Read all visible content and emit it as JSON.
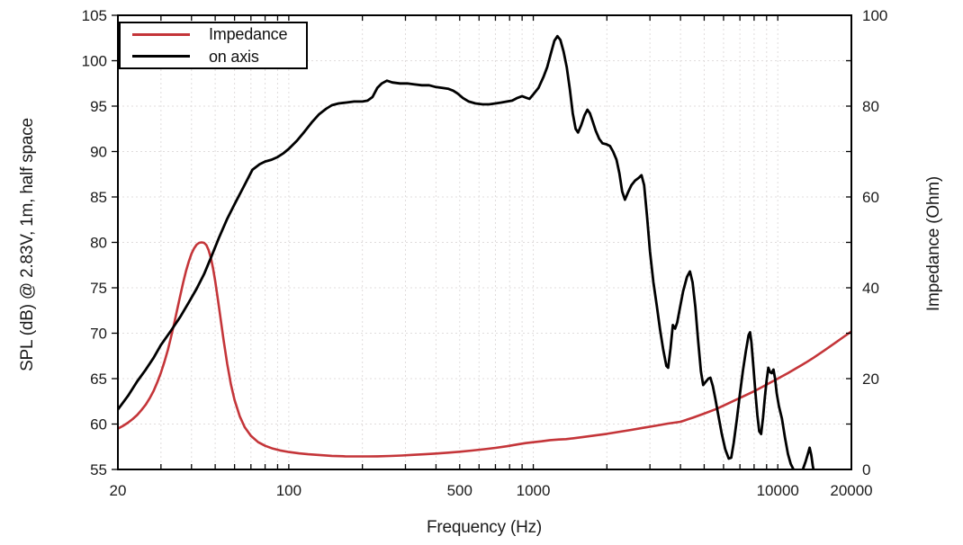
{
  "figure": {
    "background": "#ffffff",
    "frame_color": "#000000",
    "grid_color": "#e0dcdc",
    "axes": {
      "x": {
        "label": "Frequency (Hz)",
        "scale": "log",
        "min": 20,
        "max": 20000,
        "labeled_ticks": [
          20,
          100,
          500,
          1000,
          10000,
          20000
        ],
        "tick_labels": [
          "20",
          "100",
          "500",
          "1000",
          "10000",
          "20000"
        ]
      },
      "y_left": {
        "label": "SPL (dB) @ 2.83V, 1m, half space",
        "min": 55,
        "max": 105,
        "tick_step": 5,
        "ticks": [
          55,
          60,
          65,
          70,
          75,
          80,
          85,
          90,
          95,
          100,
          105
        ]
      },
      "y_right": {
        "label": "Impedance (Ohm)",
        "min": 0,
        "max": 100,
        "labeled_ticks": [
          0,
          20,
          40,
          60,
          80,
          100
        ],
        "minor_tick_step": 10
      }
    },
    "legend": {
      "position": "top-left",
      "items": [
        {
          "label": "Impedance",
          "color": "#c43539"
        },
        {
          "label": "on axis",
          "color": "#000000"
        }
      ]
    }
  },
  "chart_data": {
    "type": "line",
    "title": "",
    "xlabel": "Frequency (Hz)",
    "ylabel_left": "SPL (dB) @ 2.83V, 1m, half space",
    "ylabel_right": "Impedance (Ohm)",
    "x_scale": "log",
    "xlim": [
      20,
      20000
    ],
    "ylim_left": [
      55,
      105
    ],
    "ylim_right": [
      0,
      100
    ],
    "grid": "dotted",
    "legend_position": "top-left",
    "series": [
      {
        "name": "Impedance",
        "axis": "right",
        "units": "Ohm",
        "color": "#c43539",
        "points": [
          [
            20,
            9.0
          ],
          [
            21,
            9.6
          ],
          [
            22,
            10.3
          ],
          [
            23,
            11.1
          ],
          [
            24,
            12.0
          ],
          [
            25,
            13.1
          ],
          [
            26,
            14.3
          ],
          [
            27,
            15.7
          ],
          [
            28,
            17.3
          ],
          [
            29,
            19.2
          ],
          [
            30,
            21.3
          ],
          [
            31,
            23.7
          ],
          [
            32,
            26.3
          ],
          [
            33,
            29.2
          ],
          [
            34,
            32.2
          ],
          [
            35,
            35.3
          ],
          [
            36,
            38.3
          ],
          [
            37,
            41.2
          ],
          [
            38,
            43.7
          ],
          [
            39,
            45.8
          ],
          [
            40,
            47.5
          ],
          [
            41,
            48.7
          ],
          [
            42,
            49.5
          ],
          [
            43,
            49.9
          ],
          [
            44,
            50.0
          ],
          [
            45,
            49.9
          ],
          [
            46,
            49.4
          ],
          [
            47,
            48.3
          ],
          [
            48,
            46.6
          ],
          [
            49,
            44.3
          ],
          [
            50,
            41.5
          ],
          [
            51,
            38.4
          ],
          [
            52,
            35.2
          ],
          [
            54,
            28.8
          ],
          [
            56,
            23.2
          ],
          [
            58,
            18.7
          ],
          [
            60,
            15.3
          ],
          [
            63,
            11.7
          ],
          [
            66,
            9.3
          ],
          [
            70,
            7.4
          ],
          [
            75,
            6.0
          ],
          [
            80,
            5.2
          ],
          [
            86,
            4.6
          ],
          [
            92,
            4.2
          ],
          [
            100,
            3.85
          ],
          [
            110,
            3.55
          ],
          [
            120,
            3.35
          ],
          [
            135,
            3.15
          ],
          [
            150,
            3.0
          ],
          [
            170,
            2.9
          ],
          [
            190,
            2.87
          ],
          [
            210,
            2.87
          ],
          [
            230,
            2.9
          ],
          [
            260,
            2.97
          ],
          [
            290,
            3.07
          ],
          [
            320,
            3.2
          ],
          [
            360,
            3.35
          ],
          [
            400,
            3.5
          ],
          [
            450,
            3.7
          ],
          [
            500,
            3.9
          ],
          [
            560,
            4.15
          ],
          [
            630,
            4.45
          ],
          [
            700,
            4.75
          ],
          [
            780,
            5.1
          ],
          [
            860,
            5.5
          ],
          [
            930,
            5.8
          ],
          [
            1000,
            6.0
          ],
          [
            1080,
            6.2
          ],
          [
            1170,
            6.45
          ],
          [
            1270,
            6.6
          ],
          [
            1360,
            6.68
          ],
          [
            1450,
            6.85
          ],
          [
            1600,
            7.15
          ],
          [
            1800,
            7.5
          ],
          [
            2000,
            7.85
          ],
          [
            2250,
            8.3
          ],
          [
            2500,
            8.7
          ],
          [
            2800,
            9.15
          ],
          [
            3150,
            9.6
          ],
          [
            3550,
            10.1
          ],
          [
            4000,
            10.5
          ],
          [
            4500,
            11.4
          ],
          [
            5000,
            12.3
          ],
          [
            5600,
            13.3
          ],
          [
            6300,
            14.6
          ],
          [
            7100,
            15.9
          ],
          [
            8000,
            17.2
          ],
          [
            9000,
            18.7
          ],
          [
            10000,
            20.0
          ],
          [
            11000,
            21.2
          ],
          [
            12000,
            22.4
          ],
          [
            13000,
            23.5
          ],
          [
            14000,
            24.6
          ],
          [
            15500,
            26.2
          ],
          [
            17000,
            27.7
          ],
          [
            18500,
            29.1
          ],
          [
            20000,
            30.4
          ]
        ]
      },
      {
        "name": "on axis",
        "axis": "left",
        "units": "dB",
        "color": "#000000",
        "points": [
          [
            20,
            61.6
          ],
          [
            22,
            63.1
          ],
          [
            24,
            64.7
          ],
          [
            26,
            66.0
          ],
          [
            28,
            67.3
          ],
          [
            30,
            68.7
          ],
          [
            33,
            70.3
          ],
          [
            36,
            71.8
          ],
          [
            39,
            73.4
          ],
          [
            42,
            74.9
          ],
          [
            45,
            76.5
          ],
          [
            48,
            78.3
          ],
          [
            52,
            80.6
          ],
          [
            56,
            82.6
          ],
          [
            60,
            84.2
          ],
          [
            65,
            86.0
          ],
          [
            71,
            88.0
          ],
          [
            76,
            88.6
          ],
          [
            80,
            88.9
          ],
          [
            85,
            89.1
          ],
          [
            90,
            89.4
          ],
          [
            95,
            89.8
          ],
          [
            100,
            90.3
          ],
          [
            108,
            91.2
          ],
          [
            116,
            92.2
          ],
          [
            124,
            93.2
          ],
          [
            133,
            94.1
          ],
          [
            142,
            94.7
          ],
          [
            150,
            95.1
          ],
          [
            160,
            95.3
          ],
          [
            172,
            95.4
          ],
          [
            185,
            95.5
          ],
          [
            200,
            95.5
          ],
          [
            210,
            95.6
          ],
          [
            220,
            96.0
          ],
          [
            230,
            97.0
          ],
          [
            240,
            97.5
          ],
          [
            252,
            97.8
          ],
          [
            265,
            97.6
          ],
          [
            285,
            97.5
          ],
          [
            305,
            97.5
          ],
          [
            325,
            97.4
          ],
          [
            350,
            97.3
          ],
          [
            375,
            97.3
          ],
          [
            400,
            97.1
          ],
          [
            425,
            97.0
          ],
          [
            450,
            96.9
          ],
          [
            470,
            96.7
          ],
          [
            490,
            96.4
          ],
          [
            515,
            95.9
          ],
          [
            545,
            95.5
          ],
          [
            580,
            95.3
          ],
          [
            620,
            95.2
          ],
          [
            660,
            95.2
          ],
          [
            700,
            95.3
          ],
          [
            740,
            95.4
          ],
          [
            780,
            95.5
          ],
          [
            820,
            95.6
          ],
          [
            860,
            95.9
          ],
          [
            900,
            96.1
          ],
          [
            940,
            95.9
          ],
          [
            965,
            95.8
          ],
          [
            1000,
            96.3
          ],
          [
            1050,
            97.0
          ],
          [
            1100,
            98.2
          ],
          [
            1140,
            99.3
          ],
          [
            1180,
            100.8
          ],
          [
            1220,
            102.2
          ],
          [
            1255,
            102.7
          ],
          [
            1290,
            102.3
          ],
          [
            1330,
            101.0
          ],
          [
            1370,
            99.3
          ],
          [
            1410,
            96.9
          ],
          [
            1450,
            94.2
          ],
          [
            1490,
            92.5
          ],
          [
            1525,
            92.1
          ],
          [
            1570,
            92.9
          ],
          [
            1620,
            94.0
          ],
          [
            1665,
            94.6
          ],
          [
            1705,
            94.2
          ],
          [
            1750,
            93.3
          ],
          [
            1800,
            92.3
          ],
          [
            1860,
            91.4
          ],
          [
            1920,
            90.9
          ],
          [
            1990,
            90.8
          ],
          [
            2060,
            90.6
          ],
          [
            2120,
            90.0
          ],
          [
            2190,
            89.1
          ],
          [
            2250,
            87.6
          ],
          [
            2310,
            85.6
          ],
          [
            2370,
            84.7
          ],
          [
            2440,
            85.5
          ],
          [
            2520,
            86.3
          ],
          [
            2610,
            86.8
          ],
          [
            2700,
            87.1
          ],
          [
            2770,
            87.4
          ],
          [
            2840,
            86.3
          ],
          [
            2920,
            82.8
          ],
          [
            3000,
            79.0
          ],
          [
            3100,
            75.6
          ],
          [
            3200,
            73.0
          ],
          [
            3300,
            70.4
          ],
          [
            3400,
            68.2
          ],
          [
            3500,
            66.4
          ],
          [
            3560,
            66.2
          ],
          [
            3640,
            68.3
          ],
          [
            3720,
            70.9
          ],
          [
            3800,
            70.5
          ],
          [
            3880,
            71.2
          ],
          [
            3980,
            72.8
          ],
          [
            4100,
            74.6
          ],
          [
            4250,
            76.2
          ],
          [
            4370,
            76.8
          ],
          [
            4480,
            75.6
          ],
          [
            4600,
            72.9
          ],
          [
            4720,
            69.3
          ],
          [
            4850,
            65.8
          ],
          [
            4950,
            64.3
          ],
          [
            5060,
            64.6
          ],
          [
            5200,
            65.0
          ],
          [
            5300,
            65.1
          ],
          [
            5420,
            64.2
          ],
          [
            5550,
            62.8
          ],
          [
            5700,
            61.1
          ],
          [
            5900,
            58.9
          ],
          [
            6100,
            57.2
          ],
          [
            6300,
            56.2
          ],
          [
            6450,
            56.3
          ],
          [
            6600,
            57.9
          ],
          [
            6800,
            60.5
          ],
          [
            7000,
            63.3
          ],
          [
            7200,
            65.9
          ],
          [
            7400,
            68.0
          ],
          [
            7600,
            69.8
          ],
          [
            7700,
            70.1
          ],
          [
            7800,
            69.0
          ],
          [
            7950,
            66.2
          ],
          [
            8100,
            63.4
          ],
          [
            8250,
            61.0
          ],
          [
            8400,
            59.2
          ],
          [
            8550,
            58.9
          ],
          [
            8700,
            60.7
          ],
          [
            8850,
            62.9
          ],
          [
            9000,
            64.8
          ],
          [
            9150,
            66.2
          ],
          [
            9300,
            65.7
          ],
          [
            9450,
            65.6
          ],
          [
            9600,
            66.0
          ],
          [
            9750,
            65.0
          ],
          [
            9900,
            63.4
          ],
          [
            10100,
            62.0
          ],
          [
            10400,
            60.6
          ],
          [
            10700,
            58.5
          ],
          [
            11000,
            56.7
          ],
          [
            11300,
            55.6
          ],
          [
            11600,
            55.0
          ],
          [
            11900,
            54.5
          ],
          [
            12300,
            54.4
          ],
          [
            12700,
            55.1
          ],
          [
            13000,
            55.9
          ],
          [
            13300,
            56.8
          ],
          [
            13500,
            57.4
          ],
          [
            13700,
            56.6
          ],
          [
            13900,
            55.4
          ],
          [
            14100,
            54.5
          ],
          [
            14500,
            54.0
          ],
          [
            15000,
            53.8
          ]
        ]
      }
    ]
  }
}
